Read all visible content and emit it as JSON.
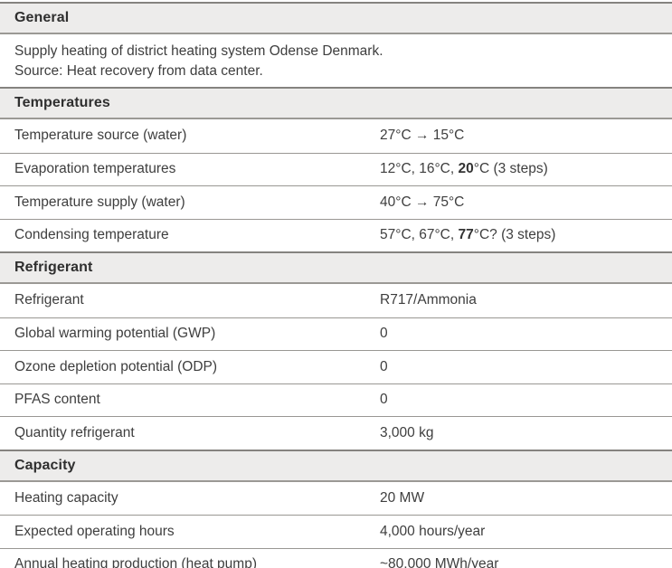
{
  "colors": {
    "section_header_background": "#edeceb",
    "section_header_border": "#85837f",
    "row_divider": "#999793",
    "text": "#3e3e3e"
  },
  "table": {
    "sections": {
      "general": {
        "title": "General",
        "description_line1": "Supply heating of district heating system Odense Denmark.",
        "description_line2": "Source: Heat recovery from data center."
      },
      "temperatures": {
        "title": "Temperatures",
        "rows": [
          {
            "label": "Temperature source (water)",
            "value": "27°C → 15°C"
          },
          {
            "label": "Evaporation temperatures",
            "value_prefix": "12°C, 16°C, ",
            "value_bold": "20",
            "value_suffix": "°C (3 steps)"
          },
          {
            "label": "Temperature supply (water)",
            "value": "40°C → 75°C"
          },
          {
            "label": "Condensing temperature",
            "value_prefix": "57°C, 67°C, ",
            "value_bold": "77",
            "value_suffix": "°C? (3 steps)"
          }
        ]
      },
      "refrigerant": {
        "title": "Refrigerant",
        "rows": [
          {
            "label": "Refrigerant",
            "value": "R717/Ammonia"
          },
          {
            "label": "Global warming potential (GWP)",
            "value": "0"
          },
          {
            "label": "Ozone depletion potential (ODP)",
            "value": "0"
          },
          {
            "label": "PFAS content",
            "value": "0"
          },
          {
            "label": "Quantity refrigerant",
            "value": "3,000 kg"
          }
        ]
      },
      "capacity": {
        "title": "Capacity",
        "rows": [
          {
            "label": "Heating capacity",
            "value": "20 MW"
          },
          {
            "label": "Expected operating hours",
            "value": "4,000 hours/year"
          },
          {
            "label": "Annual heating production (heat pump)",
            "value": "~80,000 MWh/year"
          }
        ]
      }
    }
  }
}
